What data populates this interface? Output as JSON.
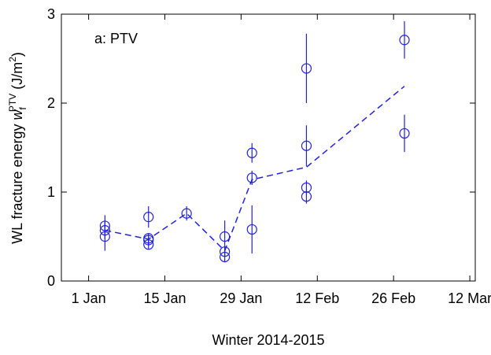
{
  "chart_data": {
    "type": "scatter",
    "annotation": "a: PTV",
    "xlabel": "Winter 2014-2015",
    "ylabel": [
      {
        "text": "WL fracture energy "
      },
      {
        "text": "w",
        "style": "italic"
      },
      {
        "text": "f",
        "style": "sub"
      },
      {
        "text": "PTV",
        "style": "sup"
      },
      {
        "text": " (J/m"
      },
      {
        "text": "2",
        "style": "sup"
      },
      {
        "text": ")"
      }
    ],
    "xlim": [
      -4,
      72
    ],
    "ylim": [
      0,
      3
    ],
    "xticks": [
      {
        "value": 1,
        "label": "1 Jan"
      },
      {
        "value": 15,
        "label": "15 Jan"
      },
      {
        "value": 29,
        "label": "29 Jan"
      },
      {
        "value": 43,
        "label": "12 Feb"
      },
      {
        "value": 57,
        "label": "26 Feb"
      },
      {
        "value": 71,
        "label": "12 Mar"
      }
    ],
    "yticks": [
      0,
      1,
      2,
      3
    ],
    "series": [
      {
        "color": "#2222dd",
        "marker": "circle",
        "x": [
          4,
          4,
          4,
          12,
          12,
          12,
          12,
          19,
          26,
          26,
          26,
          31,
          31,
          31,
          41,
          41,
          41,
          41,
          59,
          59
        ],
        "values": [
          0.62,
          0.57,
          0.5,
          0.72,
          0.48,
          0.46,
          0.41,
          0.76,
          0.5,
          0.33,
          0.27,
          1.44,
          1.16,
          0.58,
          2.39,
          1.52,
          1.05,
          0.95,
          2.71,
          1.66
        ],
        "errors": [
          0.12,
          0.1,
          0.16,
          0.12,
          0.06,
          0.05,
          0.05,
          0.08,
          0.18,
          0.05,
          0.06,
          0.11,
          0.08,
          0.27,
          0.39,
          0.23,
          0.08,
          0.08,
          0.21,
          0.21
        ]
      },
      {
        "color": "#2222dd",
        "marker": "dashed-line",
        "x": [
          4,
          12,
          19,
          26,
          31,
          41,
          59
        ],
        "values": [
          0.57,
          0.47,
          0.76,
          0.34,
          1.14,
          1.28,
          2.19
        ]
      }
    ]
  }
}
